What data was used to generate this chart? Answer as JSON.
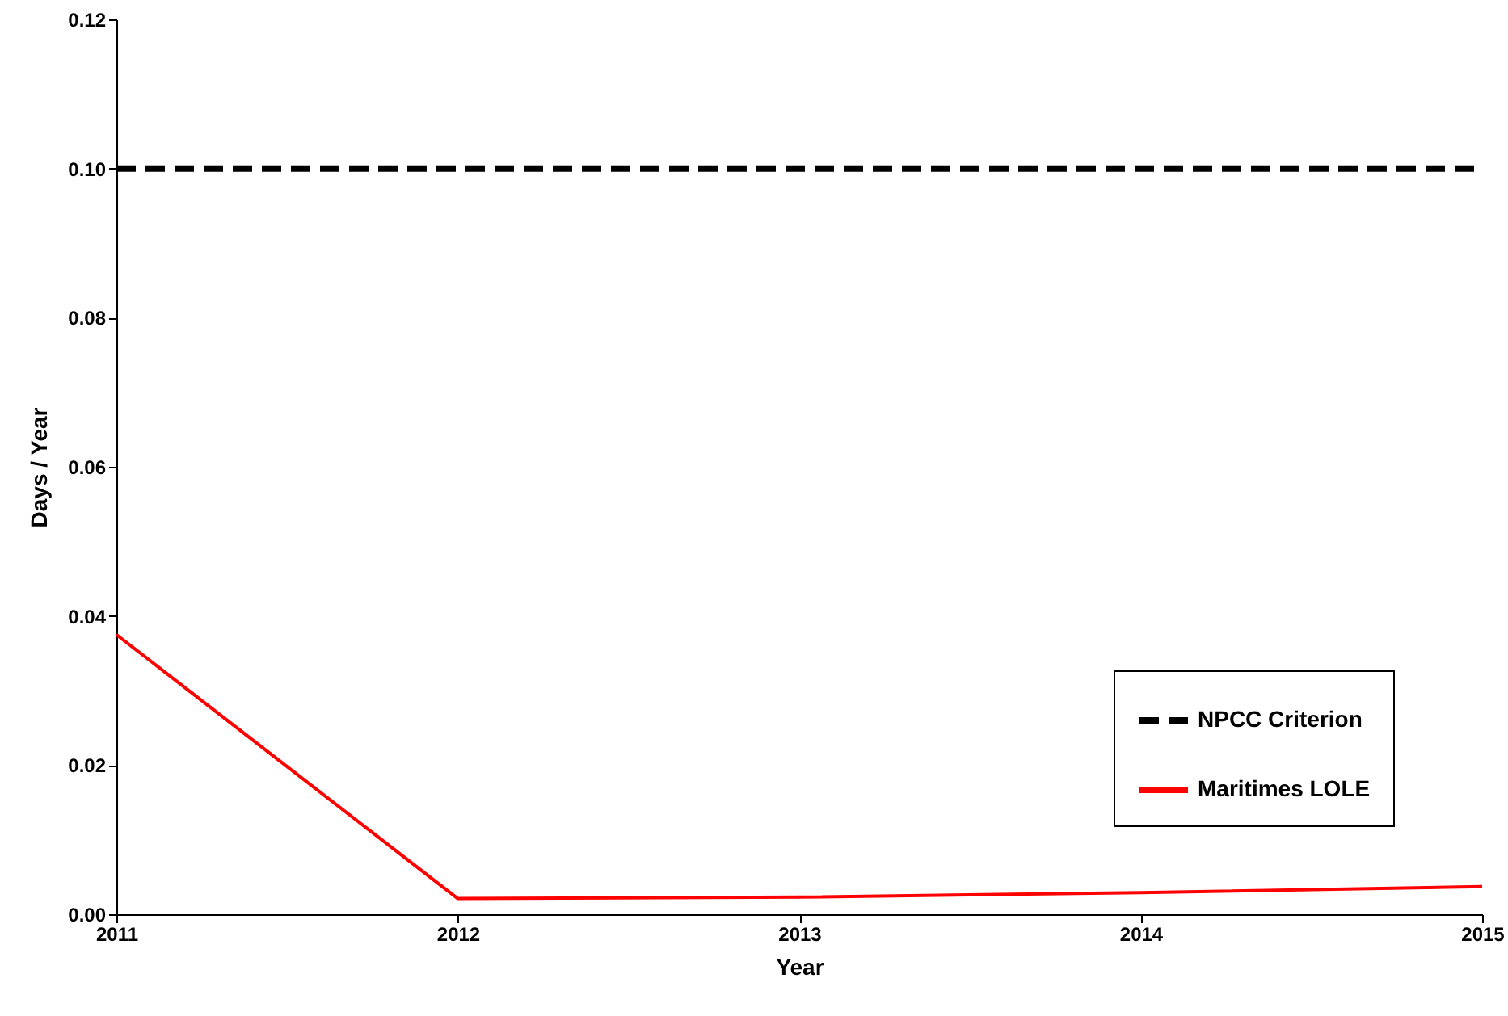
{
  "chart_data": {
    "type": "line",
    "xlabel": "Year",
    "ylabel": "Days / Year",
    "x": [
      2011,
      2012,
      2013,
      2014,
      2015
    ],
    "series": [
      {
        "name": "NPCC Criterion",
        "color": "#000000",
        "line_style": "dashed",
        "values": [
          0.1,
          0.1,
          0.1,
          0.1,
          0.1
        ]
      },
      {
        "name": "Maritimes LOLE",
        "color": "#ff0000",
        "line_style": "solid",
        "values": [
          0.0375,
          0.0021,
          0.0023,
          0.0029,
          0.0037
        ]
      }
    ],
    "xlim": [
      2011,
      2015
    ],
    "xticks": [
      2011,
      2012,
      2013,
      2014,
      2015
    ],
    "ylim": [
      0,
      0.12
    ],
    "yticks": [
      {
        "value": 0,
        "label": "0.00"
      },
      0.02,
      0.04,
      0.06,
      0.08,
      {
        "value": 0.1,
        "label": "0.10"
      },
      0.12
    ],
    "legend": "bottom right",
    "grid": false,
    "marker": "none"
  }
}
